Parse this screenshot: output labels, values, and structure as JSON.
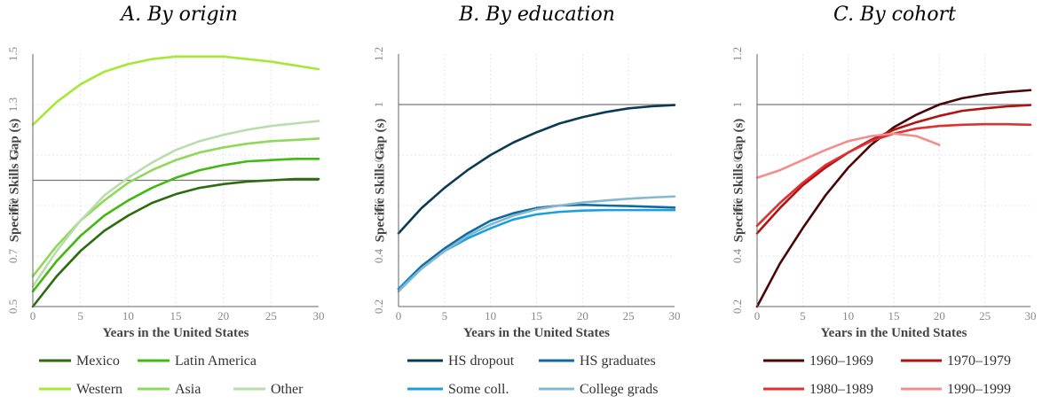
{
  "chart_data": [
    {
      "type": "line",
      "title": "A. By origin",
      "xlabel": "Years in the United States",
      "ylabel": "Specific Skills Gap (s)",
      "xlim": [
        0,
        30
      ],
      "ylim": [
        0.5,
        1.5
      ],
      "xticks": [
        "0",
        "5",
        "10",
        "15",
        "20",
        "25",
        "30"
      ],
      "yticks": [
        "0.5",
        "0.7",
        "0.9",
        "1.1",
        "1.3",
        "1.5"
      ],
      "reference_line": 1.0,
      "x": [
        0,
        2.5,
        5,
        7.5,
        10,
        12.5,
        15,
        17.5,
        20,
        22.5,
        25,
        27.5,
        30
      ],
      "series": [
        {
          "name": "Mexico",
          "color": "#2e6b0e",
          "values": [
            0.5,
            0.62,
            0.72,
            0.8,
            0.86,
            0.91,
            0.945,
            0.97,
            0.985,
            0.995,
            1.0,
            1.005,
            1.005
          ]
        },
        {
          "name": "Latin America",
          "color": "#43b811",
          "values": [
            0.56,
            0.68,
            0.78,
            0.86,
            0.92,
            0.97,
            1.01,
            1.04,
            1.06,
            1.075,
            1.08,
            1.085,
            1.085
          ]
        },
        {
          "name": "Western",
          "color": "#a6e835",
          "values": [
            1.22,
            1.31,
            1.38,
            1.43,
            1.46,
            1.48,
            1.49,
            1.49,
            1.49,
            1.48,
            1.47,
            1.455,
            1.44
          ]
        },
        {
          "name": "Asia",
          "color": "#8fd85a",
          "values": [
            0.62,
            0.74,
            0.84,
            0.92,
            0.99,
            1.04,
            1.08,
            1.11,
            1.13,
            1.145,
            1.155,
            1.16,
            1.165
          ]
        },
        {
          "name": "Other",
          "color": "#b9ddad",
          "values": [
            0.58,
            0.72,
            0.84,
            0.94,
            1.01,
            1.07,
            1.12,
            1.155,
            1.18,
            1.2,
            1.215,
            1.225,
            1.235
          ]
        }
      ],
      "legend": "bottom"
    },
    {
      "type": "line",
      "title": "B. By education",
      "xlabel": "Years in the United States",
      "ylabel": "Specific Skills Gap (s)",
      "xlim": [
        0,
        30
      ],
      "ylim": [
        0.2,
        1.2
      ],
      "xticks": [
        "0",
        "5",
        "10",
        "15",
        "20",
        "25",
        "30"
      ],
      "yticks": [
        "0.2",
        "0.4",
        "0.6",
        "0.8",
        "1",
        "1.2"
      ],
      "reference_line": 1.0,
      "x": [
        0,
        2.5,
        5,
        7.5,
        10,
        12.5,
        15,
        17.5,
        20,
        22.5,
        25,
        27.5,
        30
      ],
      "series": [
        {
          "name": "HS dropout",
          "color": "#0b3a55",
          "values": [
            0.49,
            0.59,
            0.67,
            0.74,
            0.8,
            0.85,
            0.89,
            0.925,
            0.95,
            0.97,
            0.985,
            0.993,
            0.998
          ]
        },
        {
          "name": "HS graduates",
          "color": "#0e6aa0",
          "values": [
            0.27,
            0.36,
            0.43,
            0.49,
            0.54,
            0.57,
            0.59,
            0.6,
            0.603,
            0.6,
            0.598,
            0.595,
            0.592
          ]
        },
        {
          "name": "Some coll.",
          "color": "#1a9fe0",
          "values": [
            0.27,
            0.35,
            0.42,
            0.47,
            0.51,
            0.545,
            0.565,
            0.575,
            0.58,
            0.582,
            0.582,
            0.582,
            0.582
          ]
        },
        {
          "name": "College grads",
          "color": "#85b8d0",
          "values": [
            0.26,
            0.35,
            0.42,
            0.48,
            0.525,
            0.56,
            0.585,
            0.6,
            0.612,
            0.62,
            0.627,
            0.632,
            0.636
          ]
        }
      ],
      "legend": "bottom"
    },
    {
      "type": "line",
      "title": "C. By cohort",
      "xlabel": "Years in the United States",
      "ylabel": "Specific Skills Gap (s)",
      "xlim": [
        0,
        30
      ],
      "ylim": [
        0.2,
        1.2
      ],
      "xticks": [
        "0",
        "5",
        "10",
        "15",
        "20",
        "25",
        "30"
      ],
      "yticks": [
        "0.2",
        "0.4",
        "0.6",
        "0.8",
        "1",
        "1.2"
      ],
      "reference_line": 1.0,
      "series": [
        {
          "name": "1960–1969",
          "color": "#4a0606",
          "x": [
            0,
            2.5,
            5,
            7.5,
            10,
            12.5,
            15,
            17.5,
            20,
            22.5,
            25,
            27.5,
            30
          ],
          "values": [
            0.2,
            0.37,
            0.51,
            0.64,
            0.75,
            0.84,
            0.91,
            0.96,
            1.0,
            1.025,
            1.04,
            1.05,
            1.057
          ]
        },
        {
          "name": "1970–1979",
          "color": "#b31212",
          "x": [
            0,
            2.5,
            5,
            7.5,
            10,
            12.5,
            15,
            17.5,
            20,
            22.5,
            25,
            27.5,
            30
          ],
          "values": [
            0.49,
            0.59,
            0.68,
            0.75,
            0.81,
            0.86,
            0.9,
            0.93,
            0.955,
            0.975,
            0.985,
            0.993,
            0.998
          ]
        },
        {
          "name": "1980–1989",
          "color": "#e03030",
          "x": [
            0,
            2.5,
            5,
            7.5,
            10,
            12.5,
            15,
            17.5,
            20,
            22.5,
            25,
            27.5,
            30
          ],
          "values": [
            0.52,
            0.61,
            0.69,
            0.76,
            0.81,
            0.855,
            0.885,
            0.905,
            0.915,
            0.92,
            0.922,
            0.922,
            0.92
          ]
        },
        {
          "name": "1990–1999",
          "color": "#f38c8c",
          "x": [
            0,
            2.5,
            5,
            7.5,
            10,
            12.5,
            15,
            17.5,
            20
          ],
          "values": [
            0.71,
            0.74,
            0.78,
            0.82,
            0.855,
            0.875,
            0.885,
            0.875,
            0.84
          ]
        }
      ],
      "legend": "bottom"
    }
  ]
}
